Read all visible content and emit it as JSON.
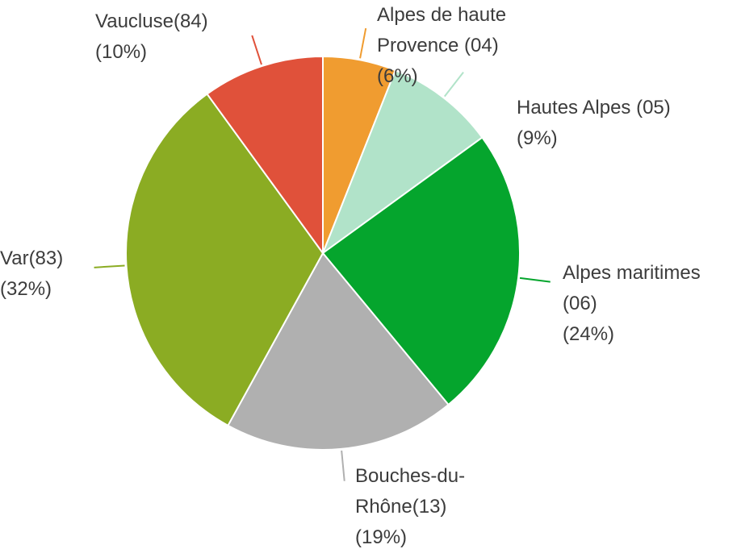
{
  "chart_data": {
    "type": "pie",
    "categories": [
      "Alpes de haute Provence (04)",
      "Hautes Alpes (05)",
      "Alpes maritimes (06)",
      "Bouches-du-Rhône(13)",
      "Var(83)",
      "Vaucluse(84)"
    ],
    "values": [
      6,
      9,
      24,
      19,
      32,
      10
    ],
    "value_labels": [
      "(6%)",
      "(9%)",
      "(24%)",
      "(19%)",
      "(32%)",
      "(10%)"
    ],
    "colors": [
      "#f09c30",
      "#b1e3c9",
      "#05a52d",
      "#b0b0b0",
      "#8bac23",
      "#e0513a"
    ]
  }
}
